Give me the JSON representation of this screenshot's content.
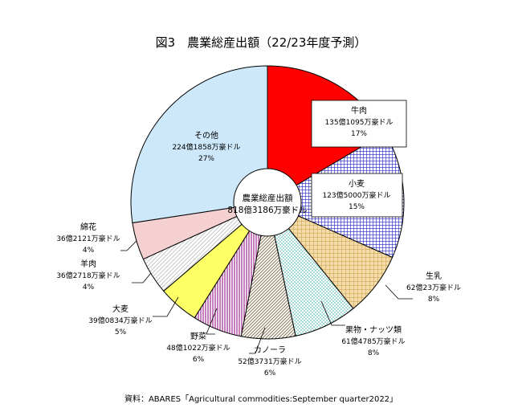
{
  "chart_data": {
    "type": "pie",
    "title": "図3　農業総産出額（22/23年度予測）",
    "center_label": {
      "name": "農業総産出額",
      "value": "818億3186万豪ドル"
    },
    "slices": [
      {
        "name": "牛肉",
        "value_text": "135億1095万豪ドル",
        "percent_text": "17%",
        "value": 135.1095,
        "color": "#ff0000",
        "pattern": "solid"
      },
      {
        "name": "小麦",
        "value_text": "123億5000万豪ドル",
        "percent_text": "15%",
        "value": 123.5,
        "color": "#2020c0",
        "pattern": "grid"
      },
      {
        "name": "生乳",
        "value_text": "62億23万豪ドル",
        "percent_text": "8%",
        "value": 62.0023,
        "color": "#e0b060",
        "pattern": "crosshatch"
      },
      {
        "name": "果物・ナッツ類",
        "value_text": "61億4785万豪ドル",
        "percent_text": "8%",
        "value": 61.4785,
        "color": "#5fc8c0",
        "pattern": "dots"
      },
      {
        "name": "カノーラ",
        "value_text": "52億3731万豪ドル",
        "percent_text": "6%",
        "value": 52.3731,
        "color": "#a09070",
        "pattern": "diagonal"
      },
      {
        "name": "野菜",
        "value_text": "48億1022万豪ドル",
        "percent_text": "6%",
        "value": 48.1022,
        "color": "#a02890",
        "pattern": "vertical"
      },
      {
        "name": "大麦",
        "value_text": "39億0834万豪ドル",
        "percent_text": "5%",
        "value": 39.0834,
        "color": "#ffff66",
        "pattern": "solid"
      },
      {
        "name": "羊肉",
        "value_text": "36億2718万豪ドル",
        "percent_text": "4%",
        "value": 36.2718,
        "color": "#cccccc",
        "pattern": "lightdiag"
      },
      {
        "name": "綿花",
        "value_text": "36億2121万豪ドル",
        "percent_text": "4%",
        "value": 36.2121,
        "color": "#f4d0d0",
        "pattern": "solid"
      },
      {
        "name": "その他",
        "value_text": "224億1858万豪ドル",
        "percent_text": "27%",
        "value": 224.1858,
        "color": "#cce8fa",
        "pattern": "solid"
      }
    ],
    "source": "資料：ABARES「Agricultural commodities:September quarter2022」"
  }
}
